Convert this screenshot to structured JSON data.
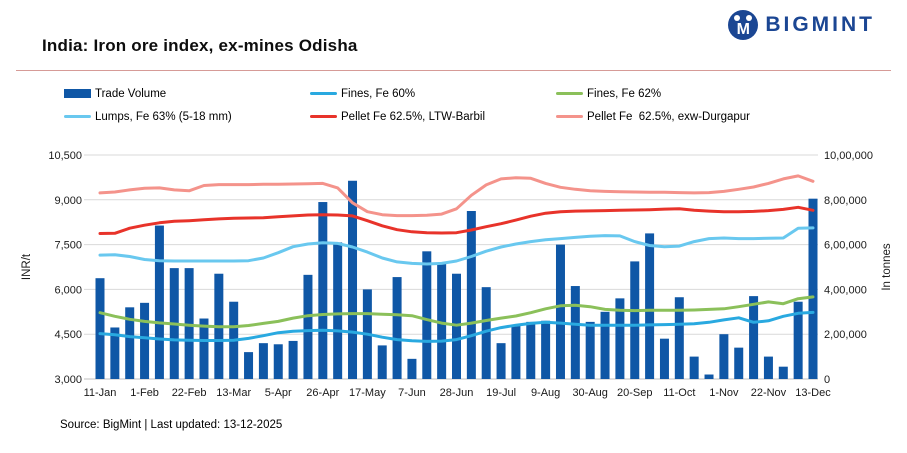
{
  "header": {
    "title": "India: Iron ore index, ex-mines Odisha",
    "brand": "BIGMINT",
    "logo_icon": "owl-m-circle-icon",
    "brand_color": "#1b4693"
  },
  "footer": {
    "source": "Source: BigMint | Last updated: 13-12-2025"
  },
  "chart_data": {
    "type": "combo-bar-line",
    "title": "India: Iron ore index, ex-mines Odisha",
    "x_tick_labels": [
      "11-Jan",
      "1-Feb",
      "22-Feb",
      "13-Mar",
      "5-Apr",
      "26-Apr",
      "17-May",
      "7-Jun",
      "28-Jun",
      "19-Jul",
      "9-Aug",
      "30-Aug",
      "20-Sep",
      "11-Oct",
      "1-Nov",
      "22-Nov",
      "13-Dec"
    ],
    "x_tick_every": 3,
    "n_points": 49,
    "grid": "horizontal",
    "legend_position": "top",
    "axes": {
      "left": {
        "title": "INR/t",
        "min": 3000,
        "max": 10500,
        "step": 1500,
        "tick_labels": [
          "10,500",
          "9,000",
          "7,500",
          "6,000",
          "4,500",
          "3,000"
        ]
      },
      "right": {
        "title": "In tonnes",
        "min": 0,
        "max": 1000000,
        "step": 200000,
        "tick_labels": [
          "10,00,000",
          "8,00,000",
          "6,00,000",
          "4,00,000",
          "2,00,000",
          "0"
        ]
      }
    },
    "series": [
      {
        "name": "Trade Volume",
        "type": "bar",
        "axis": "right",
        "color": "#0f57a6",
        "values": [
          450000,
          230000,
          320000,
          340000,
          685000,
          495000,
          495000,
          270000,
          470000,
          345000,
          120000,
          160000,
          155000,
          170000,
          465000,
          790000,
          610000,
          885000,
          400000,
          150000,
          455000,
          90000,
          570000,
          515000,
          470000,
          750000,
          410000,
          160000,
          240000,
          255000,
          260000,
          600000,
          415000,
          255000,
          300000,
          360000,
          525000,
          650000,
          180000,
          365000,
          100000,
          20000,
          200000,
          140000,
          370000,
          100000,
          55000,
          345000,
          805000
        ]
      },
      {
        "name": "Fines, Fe 60%",
        "type": "line",
        "axis": "left",
        "color": "#29a9e0",
        "values": [
          4520,
          4480,
          4420,
          4380,
          4340,
          4310,
          4300,
          4290,
          4290,
          4300,
          4360,
          4450,
          4550,
          4600,
          4620,
          4630,
          4610,
          4570,
          4500,
          4400,
          4320,
          4280,
          4260,
          4270,
          4320,
          4450,
          4600,
          4720,
          4800,
          4860,
          4900,
          4870,
          4830,
          4800,
          4800,
          4800,
          4800,
          4810,
          4820,
          4830,
          4850,
          4900,
          4980,
          5050,
          4900,
          4950,
          5100,
          5200,
          5230
        ]
      },
      {
        "name": "Fines, Fe 62%",
        "type": "line",
        "axis": "left",
        "color": "#8bc05a",
        "values": [
          5220,
          5100,
          5000,
          4930,
          4880,
          4840,
          4800,
          4770,
          4750,
          4750,
          4790,
          4860,
          4930,
          5040,
          5120,
          5160,
          5180,
          5190,
          5190,
          5170,
          5150,
          5120,
          4990,
          4870,
          4800,
          4870,
          4960,
          5040,
          5110,
          5220,
          5350,
          5450,
          5470,
          5420,
          5330,
          5300,
          5290,
          5300,
          5300,
          5300,
          5310,
          5330,
          5350,
          5420,
          5500,
          5580,
          5520,
          5690,
          5750
        ]
      },
      {
        "name": "Lumps, Fe 63% (5-18 mm)",
        "type": "line",
        "axis": "left",
        "color": "#69c8ef",
        "values": [
          7150,
          7160,
          7100,
          7000,
          6960,
          6950,
          6950,
          6950,
          6950,
          6950,
          6960,
          7050,
          7230,
          7430,
          7520,
          7560,
          7540,
          7420,
          7250,
          7050,
          6920,
          6870,
          6850,
          6870,
          6950,
          7100,
          7280,
          7420,
          7520,
          7600,
          7660,
          7700,
          7740,
          7780,
          7800,
          7790,
          7600,
          7470,
          7430,
          7450,
          7600,
          7700,
          7720,
          7700,
          7700,
          7710,
          7720,
          8050,
          8060
        ]
      },
      {
        "name": "Pellet Fe 62.5%, LTW-Barbil",
        "type": "line",
        "axis": "left",
        "color": "#e8332a",
        "values": [
          7870,
          7880,
          8050,
          8150,
          8230,
          8280,
          8300,
          8330,
          8360,
          8380,
          8390,
          8400,
          8430,
          8460,
          8490,
          8500,
          8490,
          8460,
          8300,
          8130,
          8000,
          7930,
          7900,
          7890,
          7900,
          7990,
          8100,
          8200,
          8320,
          8450,
          8550,
          8600,
          8620,
          8630,
          8640,
          8650,
          8660,
          8670,
          8690,
          8700,
          8650,
          8620,
          8600,
          8600,
          8610,
          8640,
          8680,
          8750,
          8650
        ]
      },
      {
        "name": "Pellet Fe  62.5%, exw-Durgapur",
        "type": "line",
        "axis": "left",
        "color": "#f4938b",
        "values": [
          9230,
          9260,
          9330,
          9390,
          9400,
          9330,
          9300,
          9480,
          9510,
          9510,
          9510,
          9520,
          9520,
          9530,
          9540,
          9550,
          9400,
          8900,
          8600,
          8500,
          8470,
          8470,
          8480,
          8520,
          8700,
          9150,
          9500,
          9700,
          9740,
          9720,
          9550,
          9420,
          9350,
          9300,
          9280,
          9270,
          9260,
          9250,
          9250,
          9240,
          9230,
          9240,
          9280,
          9350,
          9430,
          9550,
          9700,
          9800,
          9620
        ]
      }
    ]
  }
}
